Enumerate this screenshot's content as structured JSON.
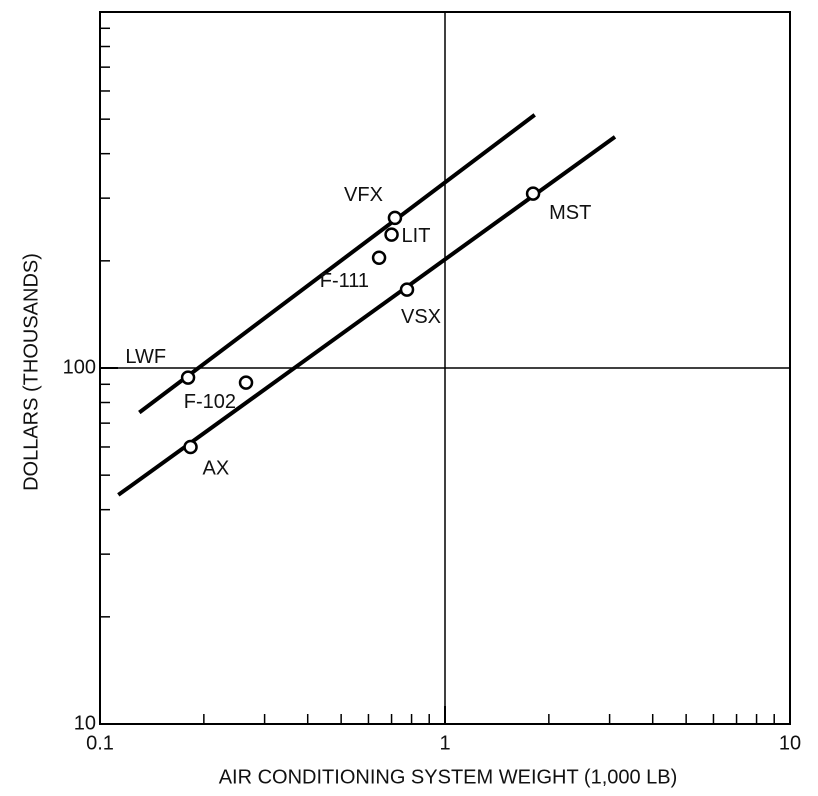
{
  "chart_data": {
    "type": "scatter",
    "xlabel": "AIR CONDITIONING SYSTEM WEIGHT (1,000 LB)",
    "ylabel": "DOLLARS (THOUSANDS)",
    "xscale": "log",
    "yscale": "log",
    "xlim": [
      0.1,
      10
    ],
    "ylim": [
      10,
      1000
    ],
    "xticks": [
      0.1,
      1,
      10
    ],
    "yticks": [
      10,
      100
    ],
    "xminor_ticks": [
      0.2,
      0.3,
      0.4,
      0.5,
      0.6,
      0.7,
      0.8,
      0.9,
      2,
      3,
      4,
      5,
      6,
      7,
      8,
      9
    ],
    "yminor_ticks": [
      20,
      30,
      40,
      50,
      60,
      70,
      80,
      90,
      200,
      300,
      400,
      500,
      600,
      700,
      800,
      900
    ],
    "grid": true,
    "color": "#000000",
    "points": {
      "labels": [
        "LWF",
        "F-102",
        "AX",
        "VFX",
        "LIT",
        "F-111",
        "VSX",
        "MST"
      ],
      "x": [
        0.18,
        0.265,
        0.183,
        0.716,
        0.7,
        0.644,
        0.776,
        1.8
      ],
      "y": [
        94,
        91,
        60,
        264,
        237,
        204,
        166,
        309
      ]
    },
    "fit_lines": [
      {
        "x": [
          0.13,
          1.82
        ],
        "y": [
          75,
          514
        ]
      },
      {
        "x": [
          0.113,
          3.11
        ],
        "y": [
          44,
          446
        ]
      }
    ]
  }
}
